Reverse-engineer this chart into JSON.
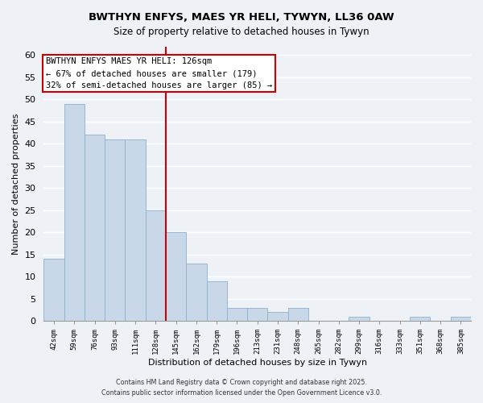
{
  "title": "BWTHYN ENFYS, MAES YR HELI, TYWYN, LL36 0AW",
  "subtitle": "Size of property relative to detached houses in Tywyn",
  "bar_labels": [
    "42sqm",
    "59sqm",
    "76sqm",
    "93sqm",
    "111sqm",
    "128sqm",
    "145sqm",
    "162sqm",
    "179sqm",
    "196sqm",
    "213sqm",
    "231sqm",
    "248sqm",
    "265sqm",
    "282sqm",
    "299sqm",
    "316sqm",
    "333sqm",
    "351sqm",
    "368sqm",
    "385sqm"
  ],
  "bar_values": [
    14,
    49,
    42,
    41,
    41,
    25,
    20,
    13,
    9,
    3,
    3,
    2,
    3,
    0,
    0,
    1,
    0,
    0,
    1,
    0,
    1
  ],
  "bar_color": "#c8d8e8",
  "bar_edge_color": "#8fb0cc",
  "highlight_index": 5,
  "highlight_line_color": "#cc0000",
  "xlabel": "Distribution of detached houses by size in Tywyn",
  "ylabel": "Number of detached properties",
  "ylim": [
    0,
    62
  ],
  "yticks": [
    0,
    5,
    10,
    15,
    20,
    25,
    30,
    35,
    40,
    45,
    50,
    55,
    60
  ],
  "annotation_title": "BWTHYN ENFYS MAES YR HELI: 126sqm",
  "annotation_line1": "← 67% of detached houses are smaller (179)",
  "annotation_line2": "32% of semi-detached houses are larger (85) →",
  "annotation_box_color": "#ffffff",
  "annotation_box_edge": "#cc0000",
  "footer_line1": "Contains HM Land Registry data © Crown copyright and database right 2025.",
  "footer_line2": "Contains public sector information licensed under the Open Government Licence v3.0.",
  "bg_color": "#eef2f7",
  "grid_color": "#ffffff"
}
